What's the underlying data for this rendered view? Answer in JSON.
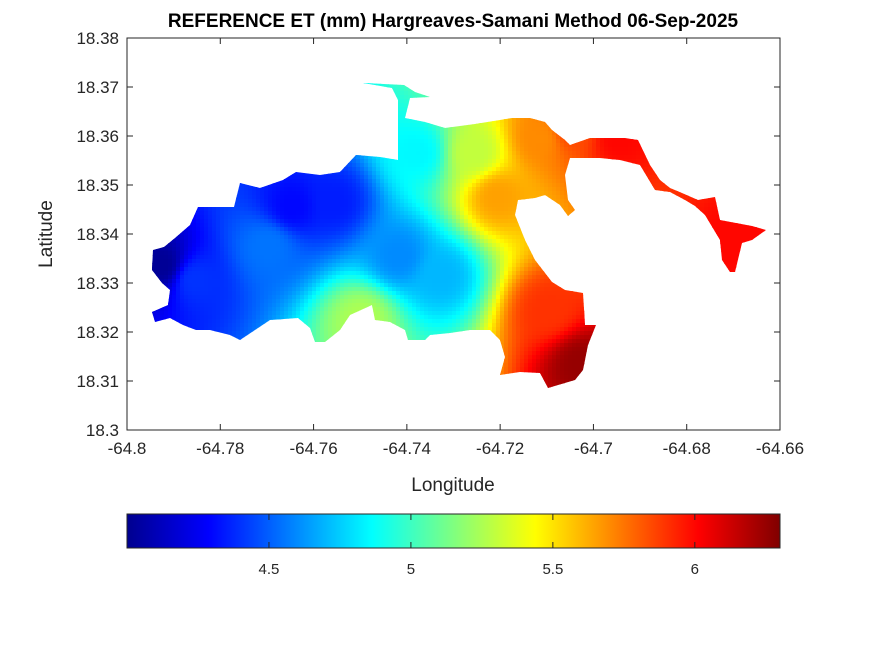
{
  "chart_data": {
    "type": "heatmap",
    "title": "REFERENCE ET (mm) Hargreaves-Samani Method  06-Sep-2025",
    "xlabel": "Longitude",
    "ylabel": "Latitude",
    "xlim": [
      -64.8,
      -64.66
    ],
    "ylim": [
      18.3,
      18.38
    ],
    "x_ticks": [
      "-64.8",
      "-64.78",
      "-64.76",
      "-64.74",
      "-64.72",
      "-64.7",
      "-64.68",
      "-64.66"
    ],
    "y_ticks": [
      "18.3",
      "18.31",
      "18.32",
      "18.33",
      "18.34",
      "18.35",
      "18.36",
      "18.37",
      "18.38"
    ],
    "colormap": "jet",
    "clim": [
      4.0,
      6.3
    ],
    "colorbar_ticks": [
      "4.5",
      "5",
      "5.5",
      "6"
    ],
    "colorbar_orientation": "horizontal-bottom",
    "grid": false,
    "hotspots": [
      {
        "lon": -64.793,
        "lat": 18.334,
        "value": 4.05
      },
      {
        "lon": -64.786,
        "lat": 18.331,
        "value": 4.4
      },
      {
        "lon": -64.765,
        "lat": 18.346,
        "value": 4.3
      },
      {
        "lon": -64.756,
        "lat": 18.347,
        "value": 4.35
      },
      {
        "lon": -64.77,
        "lat": 18.338,
        "value": 4.55
      },
      {
        "lon": -64.742,
        "lat": 18.336,
        "value": 4.6
      },
      {
        "lon": -64.733,
        "lat": 18.332,
        "value": 4.7
      },
      {
        "lon": -64.738,
        "lat": 18.357,
        "value": 4.85
      },
      {
        "lon": -64.75,
        "lat": 18.323,
        "value": 5.25
      },
      {
        "lon": -64.726,
        "lat": 18.357,
        "value": 5.3
      },
      {
        "lon": -64.721,
        "lat": 18.348,
        "value": 5.65
      },
      {
        "lon": -64.712,
        "lat": 18.36,
        "value": 5.7
      },
      {
        "lon": -64.705,
        "lat": 18.362,
        "value": 5.85
      },
      {
        "lon": -64.71,
        "lat": 18.325,
        "value": 5.9
      },
      {
        "lon": -64.703,
        "lat": 18.314,
        "value": 6.25
      },
      {
        "lon": -64.695,
        "lat": 18.36,
        "value": 6.0
      },
      {
        "lon": -64.67,
        "lat": 18.339,
        "value": 6.0
      }
    ]
  }
}
